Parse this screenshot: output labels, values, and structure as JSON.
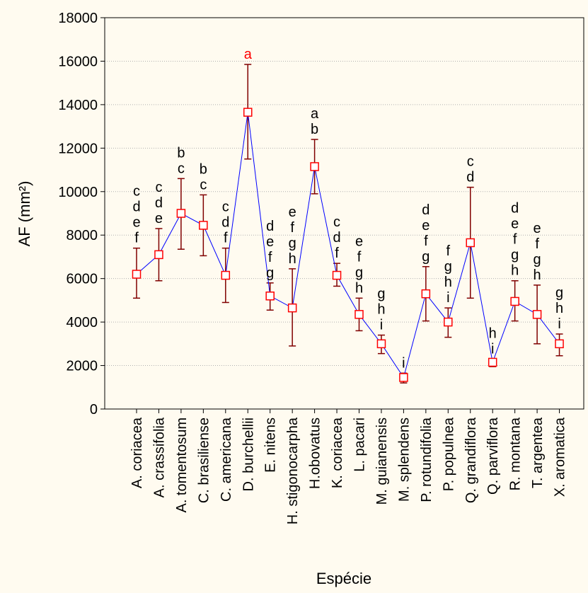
{
  "chart_data": {
    "type": "line",
    "xlabel": "Espécie",
    "ylabel": "AF (mm²)",
    "ylim": [
      0,
      18000
    ],
    "yticks": [
      0,
      2000,
      4000,
      6000,
      8000,
      10000,
      12000,
      14000,
      16000,
      18000
    ],
    "grid": true,
    "categories": [
      "A. coriacea",
      "A. crassifolia",
      "A. tomentosum",
      "C. brasiliense",
      "C. americana",
      "D. burchellii",
      "E. nitens",
      "H. stigonocarpha",
      "H.obovatus",
      "K. coriacea",
      "L. pacari",
      "M. guianensis",
      "M. splendens",
      "P. rotundifolia",
      "P. populnea",
      "Q. grandiflora",
      "Q. parviflora",
      "R. montana",
      "T. argentea",
      "X. aromatica"
    ],
    "values": [
      6200,
      7100,
      9000,
      8450,
      6150,
      13650,
      5200,
      4650,
      11150,
      6150,
      4350,
      3000,
      1450,
      5300,
      4000,
      7650,
      2150,
      4950,
      4350,
      3000
    ],
    "error_upper": [
      7400,
      8300,
      10600,
      9850,
      7400,
      15850,
      5800,
      6450,
      12400,
      6700,
      5100,
      3400,
      1650,
      6550,
      4650,
      10200,
      2300,
      5900,
      5700,
      3450
    ],
    "error_lower": [
      5100,
      5900,
      7350,
      7050,
      4900,
      11500,
      4550,
      2900,
      9900,
      5650,
      3600,
      2550,
      1200,
      4050,
      3300,
      5100,
      1950,
      4050,
      3000,
      2450
    ],
    "group_letters": [
      [
        "c",
        "d",
        "e",
        "f"
      ],
      [
        "c",
        "d",
        "e"
      ],
      [
        "b",
        "c"
      ],
      [
        "b",
        "c"
      ],
      [
        "c",
        "d",
        "f"
      ],
      [
        "a"
      ],
      [
        "d",
        "e",
        "f",
        "g"
      ],
      [
        "e",
        "f",
        "g",
        "h"
      ],
      [
        "a",
        "b"
      ],
      [
        "c",
        "d",
        "f"
      ],
      [
        "e",
        "f",
        "g",
        "h"
      ],
      [
        "g",
        "h",
        "i"
      ],
      [
        "i"
      ],
      [
        "d",
        "e",
        "f",
        "g"
      ],
      [
        "f",
        "g",
        "h",
        "i"
      ],
      [
        "c",
        "d"
      ],
      [
        "h",
        "i"
      ],
      [
        "d",
        "e",
        "f",
        "g",
        "h"
      ],
      [
        "e",
        "f",
        "g",
        "h"
      ],
      [
        "g",
        "h",
        "i"
      ]
    ],
    "highlighted_letter_index": 5,
    "colors": {
      "line": "#0000ff",
      "marker": "#ff0000",
      "error_bar": "#800000",
      "highlight_letter": "#ff0000",
      "grid": "#b0b0b0",
      "background": "#fffbf0"
    }
  }
}
